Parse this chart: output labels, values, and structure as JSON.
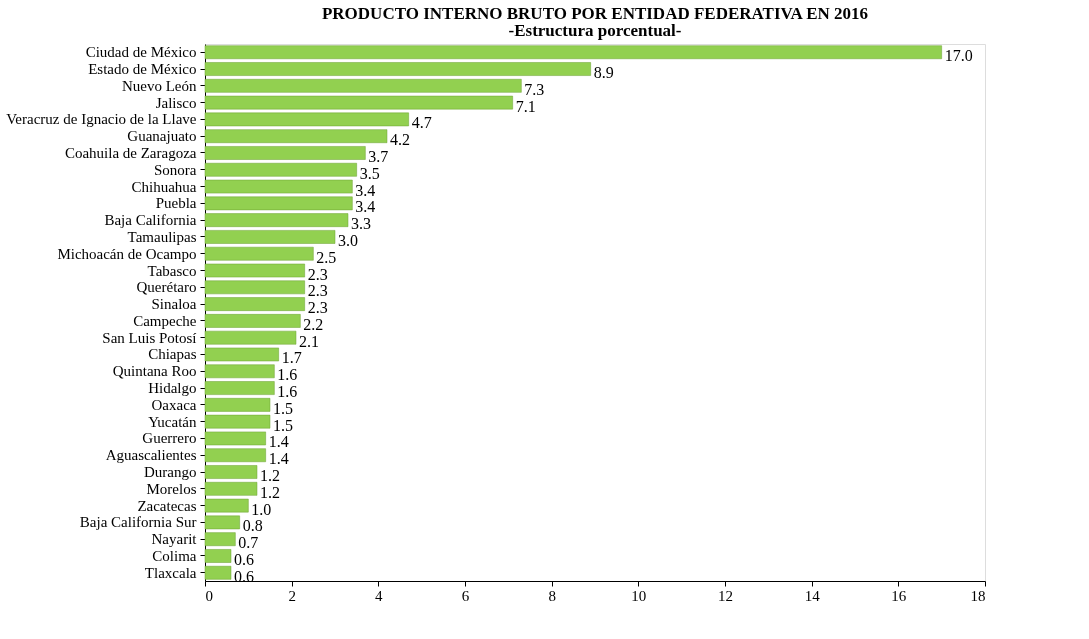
{
  "chart_data": {
    "type": "bar",
    "orientation": "horizontal",
    "title": "PRODUCTO INTERNO BRUTO POR ENTIDAD FEDERATIVA EN 2016",
    "subtitle": "-Estructura porcentual-",
    "categories": [
      "Ciudad de México",
      "Estado de México",
      "Nuevo León",
      "Jalisco",
      "Veracruz de Ignacio de la Llave",
      "Guanajuato",
      "Coahuila de Zaragoza",
      "Sonora",
      "Chihuahua",
      "Puebla",
      "Baja California",
      "Tamaulipas",
      "Michoacán de Ocampo",
      "Tabasco",
      "Querétaro",
      "Sinaloa",
      "Campeche",
      "San Luis Potosí",
      "Chiapas",
      "Quintana Roo",
      "Hidalgo",
      "Oaxaca",
      "Yucatán",
      "Guerrero",
      "Aguascalientes",
      "Durango",
      "Morelos",
      "Zacatecas",
      "Baja California Sur",
      "Nayarit",
      "Colima",
      "Tlaxcala"
    ],
    "values": [
      17.0,
      8.9,
      7.3,
      7.1,
      4.7,
      4.2,
      3.7,
      3.5,
      3.4,
      3.4,
      3.3,
      3.0,
      2.5,
      2.3,
      2.3,
      2.3,
      2.2,
      2.1,
      1.7,
      1.6,
      1.6,
      1.5,
      1.5,
      1.4,
      1.4,
      1.2,
      1.2,
      1.0,
      0.8,
      0.7,
      0.6,
      0.6
    ],
    "value_labels": [
      "17.0",
      "8.9",
      "7.3",
      "7.1",
      "4.7",
      "4.2",
      "3.7",
      "3.5",
      "3.4",
      "3.4",
      "3.3",
      "3.0",
      "2.5",
      "2.3",
      "2.3",
      "2.3",
      "2.2",
      "2.1",
      "1.7",
      "1.6",
      "1.6",
      "1.5",
      "1.5",
      "1.4",
      "1.4",
      "1.2",
      "1.2",
      "1.0",
      "0.8",
      "0.7",
      "0.6",
      "0.6"
    ],
    "color": "#92d050",
    "xlim": [
      0,
      18
    ],
    "xticks": [
      0,
      2,
      4,
      6,
      8,
      10,
      12,
      14,
      16,
      18
    ],
    "grid": false
  }
}
